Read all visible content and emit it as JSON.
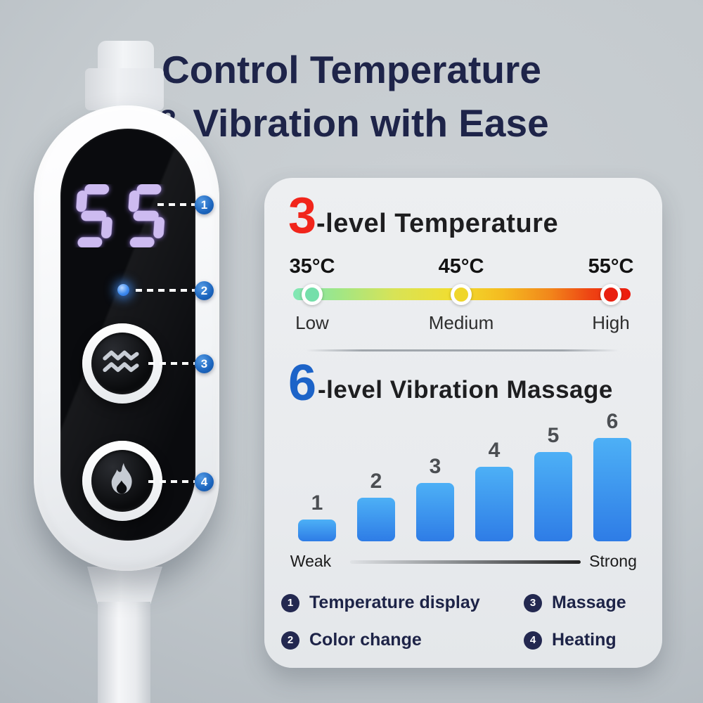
{
  "title": {
    "line1": "Control Temperature",
    "line2": "& Vibration with Ease"
  },
  "device": {
    "display_value": "55",
    "icons": {
      "display": "seven-segment-display",
      "led": "blue-led-dot",
      "massage": "wave-icon",
      "heating": "flame-icon"
    }
  },
  "temperature_section": {
    "level_count": "3",
    "heading_rest": "-level Temperature",
    "stops": [
      {
        "temp": "35°C",
        "label": "Low",
        "color": "#74dfaa"
      },
      {
        "temp": "45°C",
        "label": "Medium",
        "color": "#efd62a"
      },
      {
        "temp": "55°C",
        "label": "High",
        "color": "#e92010"
      }
    ]
  },
  "vibration_section": {
    "level_count": "6",
    "heading_rest": "-level Vibration Massage",
    "weak_label": "Weak",
    "strong_label": "Strong",
    "levels": [
      "1",
      "2",
      "3",
      "4",
      "5",
      "6"
    ]
  },
  "legend": {
    "items": [
      {
        "num": "1",
        "label": "Temperature display"
      },
      {
        "num": "2",
        "label": "Color change"
      },
      {
        "num": "3",
        "label": "Massage"
      },
      {
        "num": "4",
        "label": "Heating"
      }
    ]
  },
  "colors": {
    "title_navy": "#1e2449",
    "accent_red": "#f1251b",
    "accent_blue": "#1c63c8",
    "callout_blue": "#1b64bd",
    "bar_blue_top": "#4db0f6",
    "bar_blue_bottom": "#2e7ce6",
    "led_lavender": "#cdbbf0",
    "legend_navy": "#232850"
  },
  "chart_data": [
    {
      "type": "line",
      "title": "3-level Temperature",
      "categories": [
        "35°C",
        "45°C",
        "55°C"
      ],
      "values": [
        35,
        45,
        55
      ],
      "point_labels": [
        "Low",
        "Medium",
        "High"
      ],
      "point_colors": [
        "#74dfaa",
        "#efd62a",
        "#e92010"
      ],
      "style": "gradient-scale-green-yellow-red",
      "legend_position": "none"
    },
    {
      "type": "bar",
      "title": "6-level Vibration Massage",
      "categories": [
        "1",
        "2",
        "3",
        "4",
        "5",
        "6"
      ],
      "values": [
        1,
        2,
        3,
        4,
        5,
        6
      ],
      "xlabel": "Weak to Strong",
      "ylabel": "",
      "bar_color": "#3b93ee",
      "grid": false,
      "legend_position": "none"
    }
  ]
}
